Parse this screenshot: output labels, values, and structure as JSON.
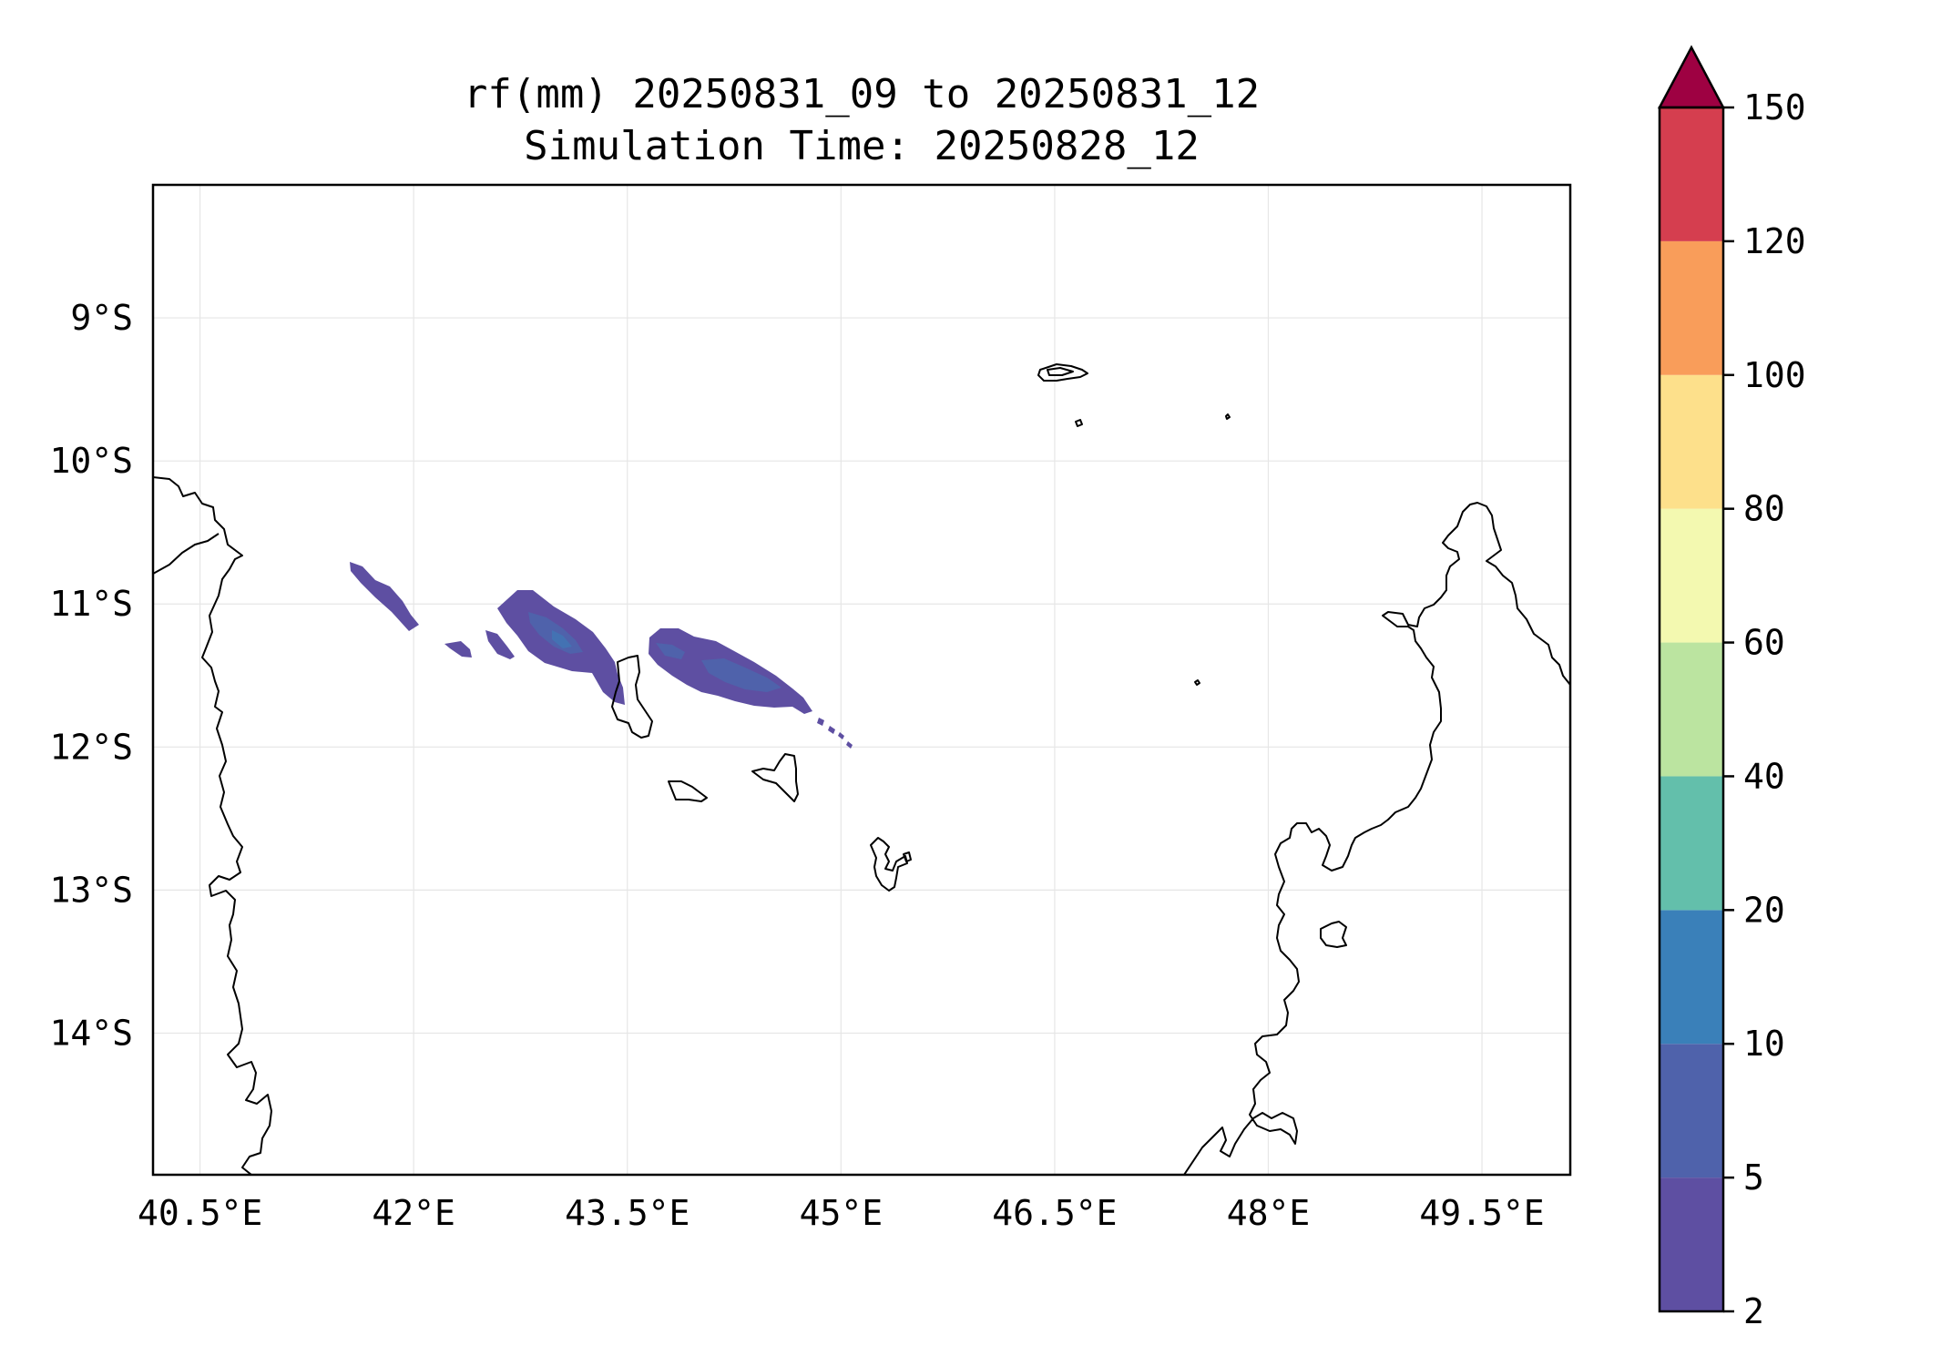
{
  "title": {
    "line1": "rf(mm) 20250831_09 to 20250831_12",
    "line2": "Simulation Time: 20250828_12"
  },
  "map": {
    "projection": "PlateCarree",
    "lon_range": [
      40.17,
      50.12
    ],
    "lat_range": [
      -14.99,
      -8.07
    ],
    "lon_ticks": [
      {
        "value": 40.5,
        "label": "40.5°E"
      },
      {
        "value": 42.0,
        "label": "42°E"
      },
      {
        "value": 43.5,
        "label": "43.5°E"
      },
      {
        "value": 45.0,
        "label": "45°E"
      },
      {
        "value": 46.5,
        "label": "46.5°E"
      },
      {
        "value": 48.0,
        "label": "48°E"
      },
      {
        "value": 49.5,
        "label": "49.5°E"
      }
    ],
    "lat_ticks": [
      {
        "value": -9,
        "label": "9°S"
      },
      {
        "value": -10,
        "label": "10°S"
      },
      {
        "value": -11,
        "label": "11°S"
      },
      {
        "value": -12,
        "label": "12°S"
      },
      {
        "value": -13,
        "label": "13°S"
      },
      {
        "value": -14,
        "label": "14°S"
      }
    ],
    "gridlines": true,
    "features": [
      "African coastline (Tanzania/Mozambique)",
      "Comoros islands",
      "Mayotte",
      "Aldabra group",
      "northern Madagascar"
    ]
  },
  "colorbar": {
    "placement": "right",
    "extend": "max",
    "levels": [
      2,
      5,
      10,
      20,
      40,
      60,
      80,
      100,
      120,
      150
    ],
    "labels": [
      "2",
      "5",
      "10",
      "20",
      "40",
      "60",
      "80",
      "100",
      "120",
      "150"
    ],
    "colors": [
      "#5e4fa2",
      "#4f62ab",
      "#3a80b9",
      "#63bfab",
      "#bbe4a0",
      "#f3f9b0",
      "#fde08b",
      "#f99d5a",
      "#d53e4f",
      "#9e0142"
    ]
  },
  "chart_data": {
    "type": "heatmap",
    "variable": "rf(mm)",
    "rain_band": [
      {
        "region": "northwest of Grande Comore",
        "lon_range": [
          41.5,
          41.95
        ],
        "lat_range": [
          -11.2,
          -10.75
        ],
        "category_mm": "2-5"
      },
      {
        "region": "west of Grande Comore",
        "lon_range": [
          42.05,
          42.6
        ],
        "lat_range": [
          -11.4,
          -11.2
        ],
        "category_mm": "2-5"
      },
      {
        "region": "north of Grande Comore",
        "lon_range": [
          42.45,
          43.35
        ],
        "lat_range": [
          -11.6,
          -10.95
        ],
        "category_mm": "2-10"
      },
      {
        "region": "north of Moheli/Anjouan channel",
        "lon_range": [
          43.5,
          44.9
        ],
        "lat_range": [
          -11.8,
          -11.2
        ],
        "category_mm": "2-10"
      }
    ]
  }
}
